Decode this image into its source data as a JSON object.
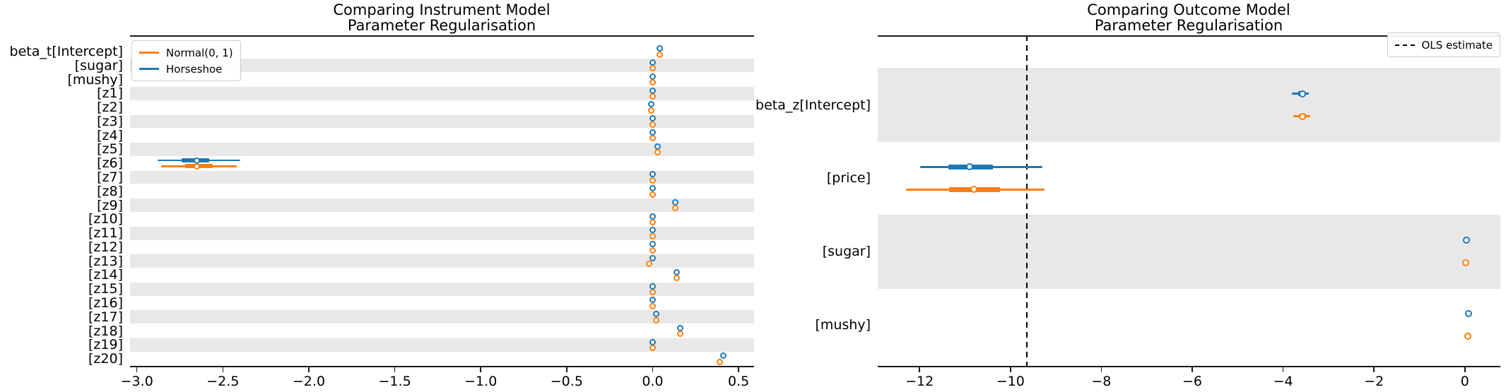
{
  "figure": {
    "background": "#ffffff"
  },
  "colors": {
    "normal": "#ff7f0e",
    "horseshoe": "#1f77b4",
    "band": "#e8e8e8",
    "axis": "#1a1a1a"
  },
  "chart_data": [
    {
      "type": "forest",
      "title": "Comparing Instrument Model\nParameter Regularisation",
      "legend": {
        "position": "top-left",
        "entries": [
          {
            "label": "Normal(0, 1)",
            "color": "#ff7f0e",
            "style": "solid"
          },
          {
            "label": "Horseshoe",
            "color": "#1f77b4",
            "style": "solid"
          }
        ]
      },
      "xlim": [
        -3.04,
        0.59
      ],
      "xticks": [
        -3.0,
        -2.5,
        -2.0,
        -1.5,
        -1.0,
        -0.5,
        0.0,
        0.5
      ],
      "xtick_labels": [
        "−3.0",
        "−2.5",
        "−2.0",
        "−1.5",
        "−1.0",
        "−0.5",
        "0.0",
        "0.5"
      ],
      "grid": false,
      "rows": [
        {
          "label": "beta_t[Intercept]",
          "shaded": false,
          "series": [
            {
              "name": "Horseshoe",
              "color": "#1f77b4",
              "mean": 0.04
            },
            {
              "name": "Normal(0, 1)",
              "color": "#ff7f0e",
              "mean": 0.04
            }
          ]
        },
        {
          "label": "[sugar]",
          "shaded": true,
          "series": [
            {
              "name": "Horseshoe",
              "color": "#1f77b4",
              "mean": 0.0
            },
            {
              "name": "Normal(0, 1)",
              "color": "#ff7f0e",
              "mean": 0.0
            }
          ]
        },
        {
          "label": "[mushy]",
          "shaded": false,
          "series": [
            {
              "name": "Horseshoe",
              "color": "#1f77b4",
              "mean": 0.0
            },
            {
              "name": "Normal(0, 1)",
              "color": "#ff7f0e",
              "mean": 0.0
            }
          ]
        },
        {
          "label": "[z1]",
          "shaded": true,
          "series": [
            {
              "name": "Horseshoe",
              "color": "#1f77b4",
              "mean": 0.0
            },
            {
              "name": "Normal(0, 1)",
              "color": "#ff7f0e",
              "mean": 0.0
            }
          ]
        },
        {
          "label": "[z2]",
          "shaded": false,
          "series": [
            {
              "name": "Horseshoe",
              "color": "#1f77b4",
              "mean": -0.01
            },
            {
              "name": "Normal(0, 1)",
              "color": "#ff7f0e",
              "mean": -0.01
            }
          ]
        },
        {
          "label": "[z3]",
          "shaded": true,
          "series": [
            {
              "name": "Horseshoe",
              "color": "#1f77b4",
              "mean": 0.0
            },
            {
              "name": "Normal(0, 1)",
              "color": "#ff7f0e",
              "mean": 0.0
            }
          ]
        },
        {
          "label": "[z4]",
          "shaded": false,
          "series": [
            {
              "name": "Horseshoe",
              "color": "#1f77b4",
              "mean": 0.0
            },
            {
              "name": "Normal(0, 1)",
              "color": "#ff7f0e",
              "mean": 0.0
            }
          ]
        },
        {
          "label": "[z5]",
          "shaded": true,
          "series": [
            {
              "name": "Horseshoe",
              "color": "#1f77b4",
              "mean": 0.03
            },
            {
              "name": "Normal(0, 1)",
              "color": "#ff7f0e",
              "mean": 0.03
            }
          ]
        },
        {
          "label": "[z6]",
          "shaded": false,
          "series": [
            {
              "name": "Horseshoe",
              "color": "#1f77b4",
              "mean": -2.65,
              "ci": [
                -2.88,
                -2.4
              ],
              "thick": [
                -2.74,
                -2.58
              ]
            },
            {
              "name": "Normal(0, 1)",
              "color": "#ff7f0e",
              "mean": -2.65,
              "ci": [
                -2.86,
                -2.42
              ],
              "thick": [
                -2.72,
                -2.56
              ]
            }
          ]
        },
        {
          "label": "[z7]",
          "shaded": true,
          "series": [
            {
              "name": "Horseshoe",
              "color": "#1f77b4",
              "mean": 0.0
            },
            {
              "name": "Normal(0, 1)",
              "color": "#ff7f0e",
              "mean": 0.0
            }
          ]
        },
        {
          "label": "[z8]",
          "shaded": false,
          "series": [
            {
              "name": "Horseshoe",
              "color": "#1f77b4",
              "mean": 0.0
            },
            {
              "name": "Normal(0, 1)",
              "color": "#ff7f0e",
              "mean": 0.0
            }
          ]
        },
        {
          "label": "[z9]",
          "shaded": true,
          "series": [
            {
              "name": "Horseshoe",
              "color": "#1f77b4",
              "mean": 0.13
            },
            {
              "name": "Normal(0, 1)",
              "color": "#ff7f0e",
              "mean": 0.13
            }
          ]
        },
        {
          "label": "[z10]",
          "shaded": false,
          "series": [
            {
              "name": "Horseshoe",
              "color": "#1f77b4",
              "mean": 0.0
            },
            {
              "name": "Normal(0, 1)",
              "color": "#ff7f0e",
              "mean": 0.0
            }
          ]
        },
        {
          "label": "[z11]",
          "shaded": true,
          "series": [
            {
              "name": "Horseshoe",
              "color": "#1f77b4",
              "mean": 0.0
            },
            {
              "name": "Normal(0, 1)",
              "color": "#ff7f0e",
              "mean": 0.0
            }
          ]
        },
        {
          "label": "[z12]",
          "shaded": false,
          "series": [
            {
              "name": "Horseshoe",
              "color": "#1f77b4",
              "mean": 0.0
            },
            {
              "name": "Normal(0, 1)",
              "color": "#ff7f0e",
              "mean": 0.0
            }
          ]
        },
        {
          "label": "[z13]",
          "shaded": true,
          "series": [
            {
              "name": "Horseshoe",
              "color": "#1f77b4",
              "mean": 0.0
            },
            {
              "name": "Normal(0, 1)",
              "color": "#ff7f0e",
              "mean": -0.02
            }
          ]
        },
        {
          "label": "[z14]",
          "shaded": false,
          "series": [
            {
              "name": "Horseshoe",
              "color": "#1f77b4",
              "mean": 0.14
            },
            {
              "name": "Normal(0, 1)",
              "color": "#ff7f0e",
              "mean": 0.14
            }
          ]
        },
        {
          "label": "[z15]",
          "shaded": true,
          "series": [
            {
              "name": "Horseshoe",
              "color": "#1f77b4",
              "mean": 0.0
            },
            {
              "name": "Normal(0, 1)",
              "color": "#ff7f0e",
              "mean": 0.0
            }
          ]
        },
        {
          "label": "[z16]",
          "shaded": false,
          "series": [
            {
              "name": "Horseshoe",
              "color": "#1f77b4",
              "mean": 0.0
            },
            {
              "name": "Normal(0, 1)",
              "color": "#ff7f0e",
              "mean": 0.0
            }
          ]
        },
        {
          "label": "[z17]",
          "shaded": true,
          "series": [
            {
              "name": "Horseshoe",
              "color": "#1f77b4",
              "mean": 0.02
            },
            {
              "name": "Normal(0, 1)",
              "color": "#ff7f0e",
              "mean": 0.02
            }
          ]
        },
        {
          "label": "[z18]",
          "shaded": false,
          "series": [
            {
              "name": "Horseshoe",
              "color": "#1f77b4",
              "mean": 0.16
            },
            {
              "name": "Normal(0, 1)",
              "color": "#ff7f0e",
              "mean": 0.16
            }
          ]
        },
        {
          "label": "[z19]",
          "shaded": true,
          "series": [
            {
              "name": "Horseshoe",
              "color": "#1f77b4",
              "mean": 0.0
            },
            {
              "name": "Normal(0, 1)",
              "color": "#ff7f0e",
              "mean": 0.0
            }
          ]
        },
        {
          "label": "[z20]",
          "shaded": false,
          "series": [
            {
              "name": "Horseshoe",
              "color": "#1f77b4",
              "mean": 0.41
            },
            {
              "name": "Normal(0, 1)",
              "color": "#ff7f0e",
              "mean": 0.39
            }
          ]
        }
      ]
    },
    {
      "type": "forest",
      "title": "Comparing Outcome Model\nParameter Regularisation",
      "legend": {
        "position": "top-right",
        "entries": [
          {
            "label": "OLS estimate",
            "color": "#000000",
            "style": "dashed"
          }
        ]
      },
      "vline": {
        "value": -9.64,
        "label": "OLS estimate",
        "style": "dashed",
        "color": "#000000"
      },
      "xlim": [
        -12.92,
        0.78
      ],
      "xticks": [
        -12,
        -10,
        -8,
        -6,
        -4,
        -2,
        0
      ],
      "xtick_labels": [
        "−12",
        "−10",
        "−8",
        "−6",
        "−4",
        "−2",
        "0"
      ],
      "grid": false,
      "rows": [
        {
          "label": "beta_z[Intercept]",
          "shaded": true,
          "series": [
            {
              "name": "Horseshoe",
              "color": "#1f77b4",
              "mean": -3.58,
              "ci": [
                -3.81,
                -3.44
              ],
              "thick": [
                -3.66,
                -3.51
              ]
            },
            {
              "name": "Normal(0, 1)",
              "color": "#ff7f0e",
              "mean": -3.58,
              "ci": [
                -3.78,
                -3.41
              ],
              "thick": [
                -3.65,
                -3.5
              ]
            }
          ]
        },
        {
          "label": "[price]",
          "shaded": false,
          "series": [
            {
              "name": "Horseshoe",
              "color": "#1f77b4",
              "mean": -10.9,
              "ci": [
                -11.98,
                -9.3
              ],
              "thick": [
                -11.37,
                -10.39
              ]
            },
            {
              "name": "Normal(0, 1)",
              "color": "#ff7f0e",
              "mean": -10.81,
              "ci": [
                -12.3,
                -9.25
              ],
              "thick": [
                -11.35,
                -10.23
              ]
            }
          ]
        },
        {
          "label": "[sugar]",
          "shaded": true,
          "series": [
            {
              "name": "Horseshoe",
              "color": "#1f77b4",
              "mean": 0.03
            },
            {
              "name": "Normal(0, 1)",
              "color": "#ff7f0e",
              "mean": 0.02
            }
          ]
        },
        {
          "label": "[mushy]",
          "shaded": false,
          "series": [
            {
              "name": "Horseshoe",
              "color": "#1f77b4",
              "mean": 0.08
            },
            {
              "name": "Normal(0, 1)",
              "color": "#ff7f0e",
              "mean": 0.07
            }
          ]
        }
      ]
    }
  ]
}
